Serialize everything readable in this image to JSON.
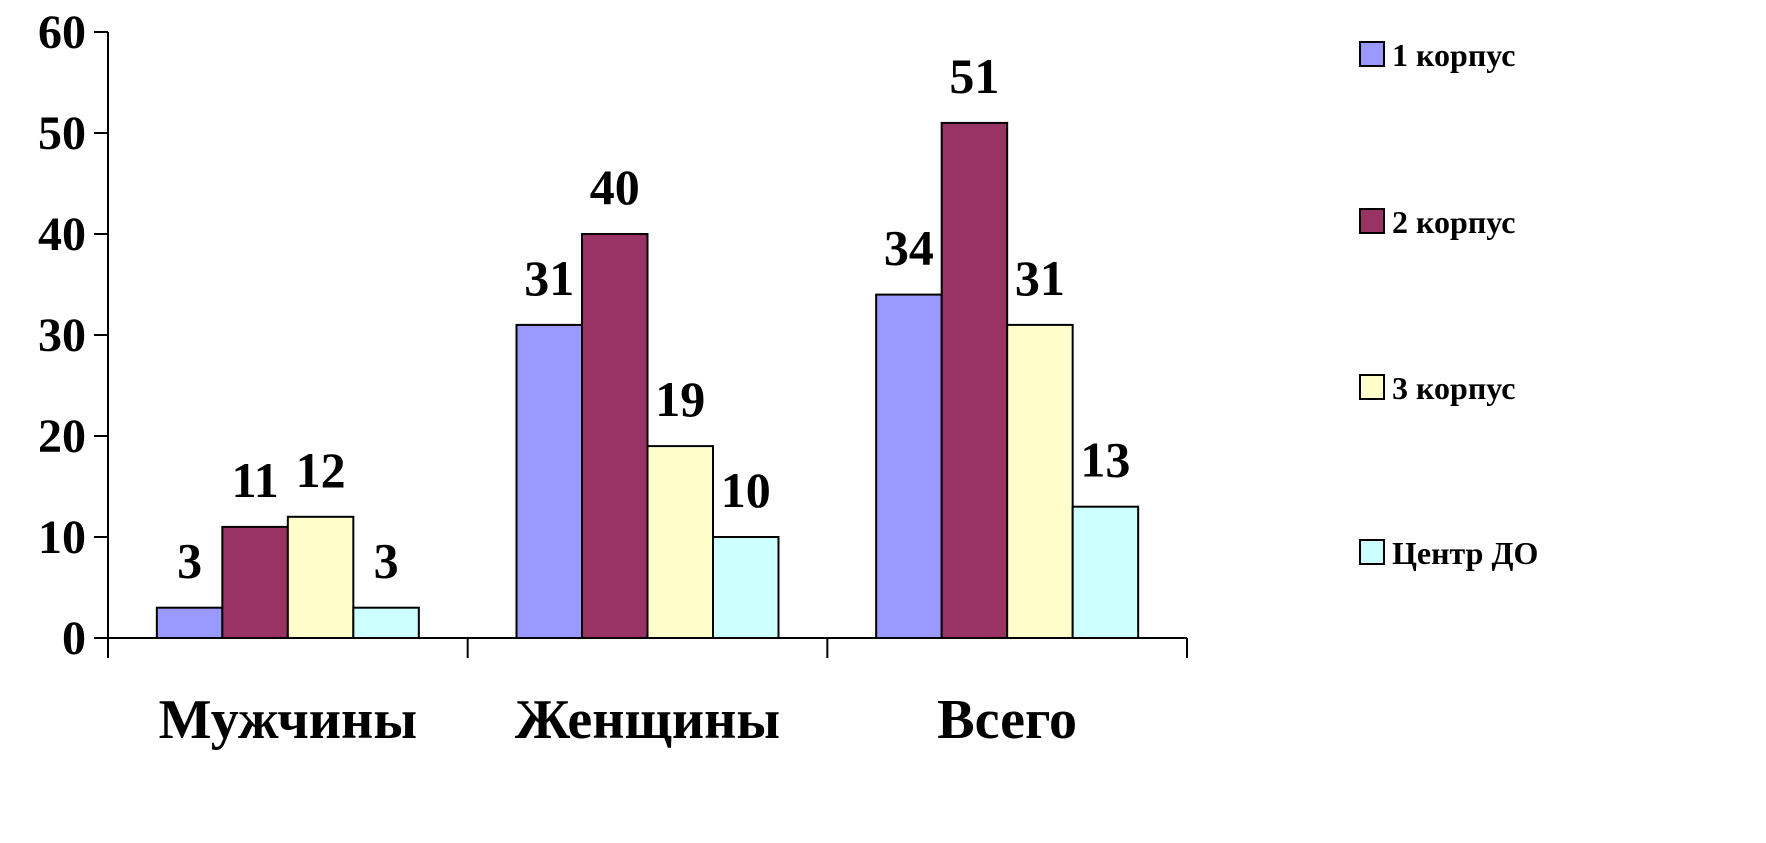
{
  "chart_data": {
    "type": "bar",
    "title": "",
    "xlabel": "",
    "ylabel": "",
    "categories": [
      "Мужчины",
      "Женщины",
      "Всего"
    ],
    "series": [
      {
        "name": "1 корпус",
        "values": [
          3,
          31,
          34
        ],
        "color": "#9999ff"
      },
      {
        "name": "2 корпус",
        "values": [
          11,
          40,
          51
        ],
        "color": "#993366"
      },
      {
        "name": "3 корпус",
        "values": [
          12,
          19,
          31
        ],
        "color": "#ffffcc"
      },
      {
        "name": "Центр ДО",
        "values": [
          3,
          10,
          13
        ],
        "color": "#ccffff"
      }
    ],
    "ylim": [
      0,
      60
    ],
    "yticks": [
      0,
      10,
      20,
      30,
      40,
      50,
      60
    ],
    "grid": false,
    "legend": "right",
    "data_labels": true
  }
}
